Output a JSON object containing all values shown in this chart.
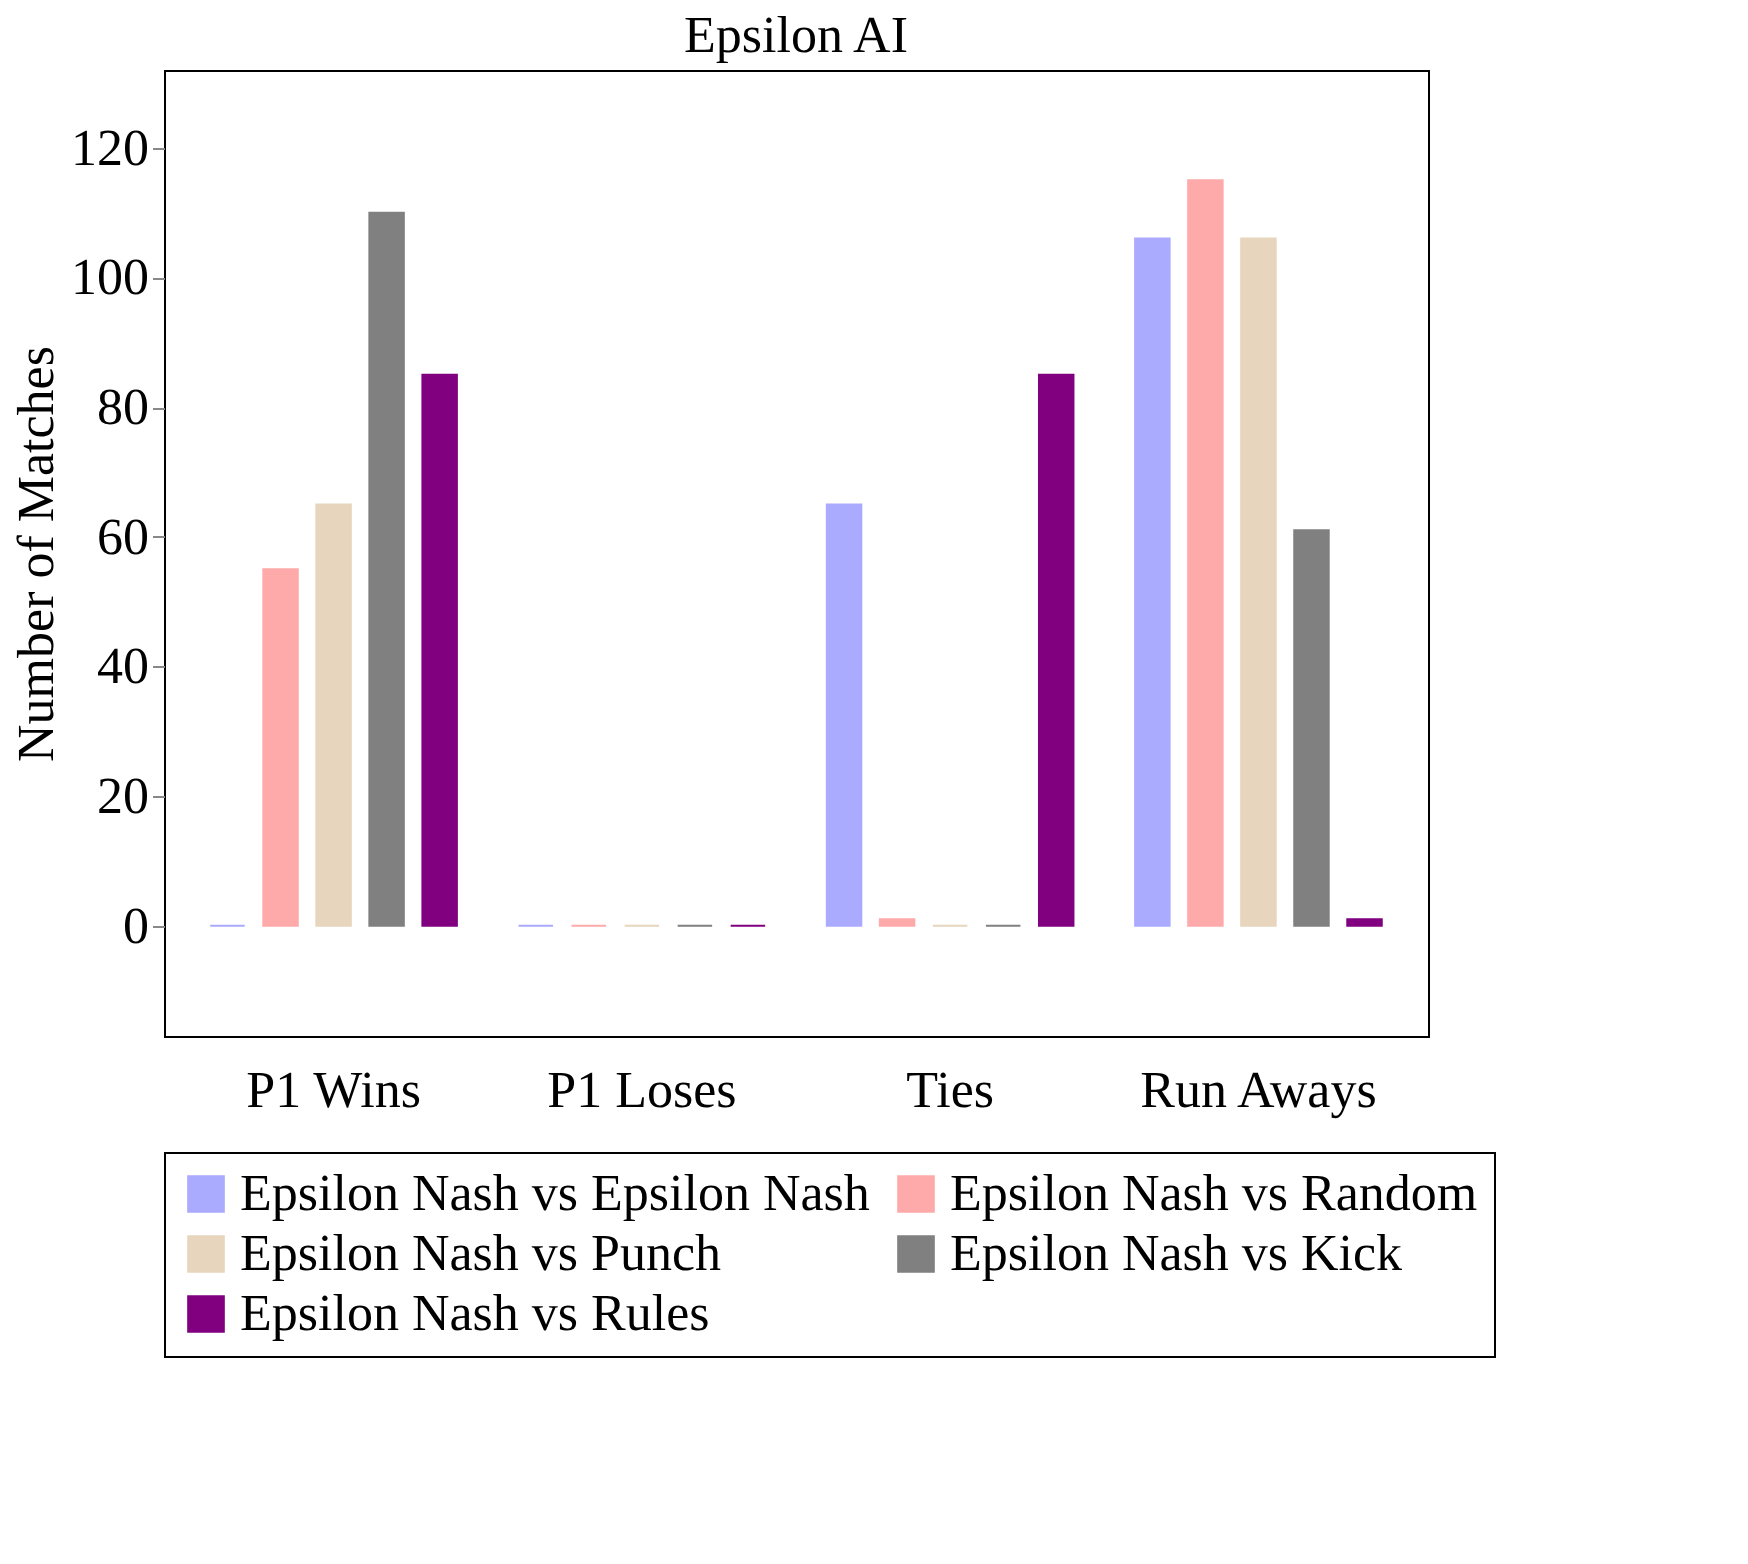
{
  "chart_data": {
    "type": "bar",
    "title": "Epsilon AI",
    "ylabel": "Number of Matches",
    "categories": [
      "P1 Wins",
      "P1 Loses",
      "Ties",
      "Run Aways"
    ],
    "series": [
      {
        "name": "Epsilon Nash vs Epsilon Nash",
        "color": "#aaaaff",
        "values": [
          0,
          0,
          65,
          106
        ]
      },
      {
        "name": "Epsilon Nash vs Random",
        "color": "#ffaaaa",
        "values": [
          55,
          0,
          1,
          115
        ]
      },
      {
        "name": "Epsilon Nash vs Punch",
        "color": "#e8d5bd",
        "values": [
          65,
          0,
          0,
          106
        ]
      },
      {
        "name": "Epsilon Nash vs Kick",
        "color": "#808080",
        "values": [
          110,
          0,
          0,
          61
        ]
      },
      {
        "name": "Epsilon Nash vs Rules",
        "color": "#800080",
        "values": [
          85,
          0,
          85,
          1
        ]
      }
    ],
    "ylim": [
      -17,
      132
    ],
    "yticks": [
      0,
      20,
      40,
      60,
      80,
      100,
      120
    ],
    "grid": false,
    "legend": "bottom"
  }
}
